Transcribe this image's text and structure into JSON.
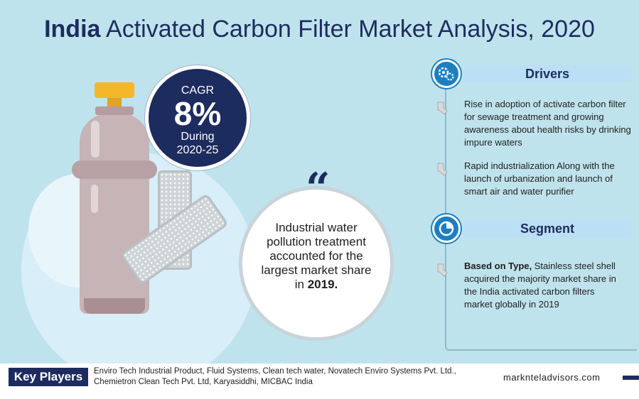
{
  "title": {
    "bold": "India",
    "rest": "Activated Carbon Filter Market Analysis, 2020"
  },
  "cagr": {
    "label": "CAGR",
    "value": "8%",
    "during": "During",
    "period": "2020-25"
  },
  "quote": {
    "mark": "“",
    "text": "Industrial water pollution treatment accounted for the largest market share in",
    "year": "2019."
  },
  "drivers": {
    "heading": "Drivers",
    "icon": "gears-icon",
    "items": [
      "Rise in adoption of activate carbon filter for sewage treatment and growing awareness about health risks by drinking impure waters",
      "Rapid industrialization Along with the launch of urbanization and launch of smart air and water purifier"
    ]
  },
  "segment": {
    "heading": "Segment",
    "icon": "segment-chart-icon",
    "items": [
      {
        "bold": "Based on Type,",
        "text": "Stainless steel shell acquired the majority market share in the India activated carbon filters market globally in 2019"
      }
    ]
  },
  "footer": {
    "label": "Key Players",
    "players_line1": "Enviro Tech Industrial Product, Fluid Systems, Clean tech water, Novatech Enviro Systems Pvt. Ltd.,",
    "players_line2": "Chemietron Clean Tech Pvt. Ltd, Karyasiddhi, MICBAC India",
    "brand": "marknteladvisors.com"
  },
  "colors": {
    "navy": "#1d2c5e",
    "background": "#bfe3ec",
    "accent_blue": "#1e7fc0",
    "cap_yellow": "#f4b728"
  }
}
